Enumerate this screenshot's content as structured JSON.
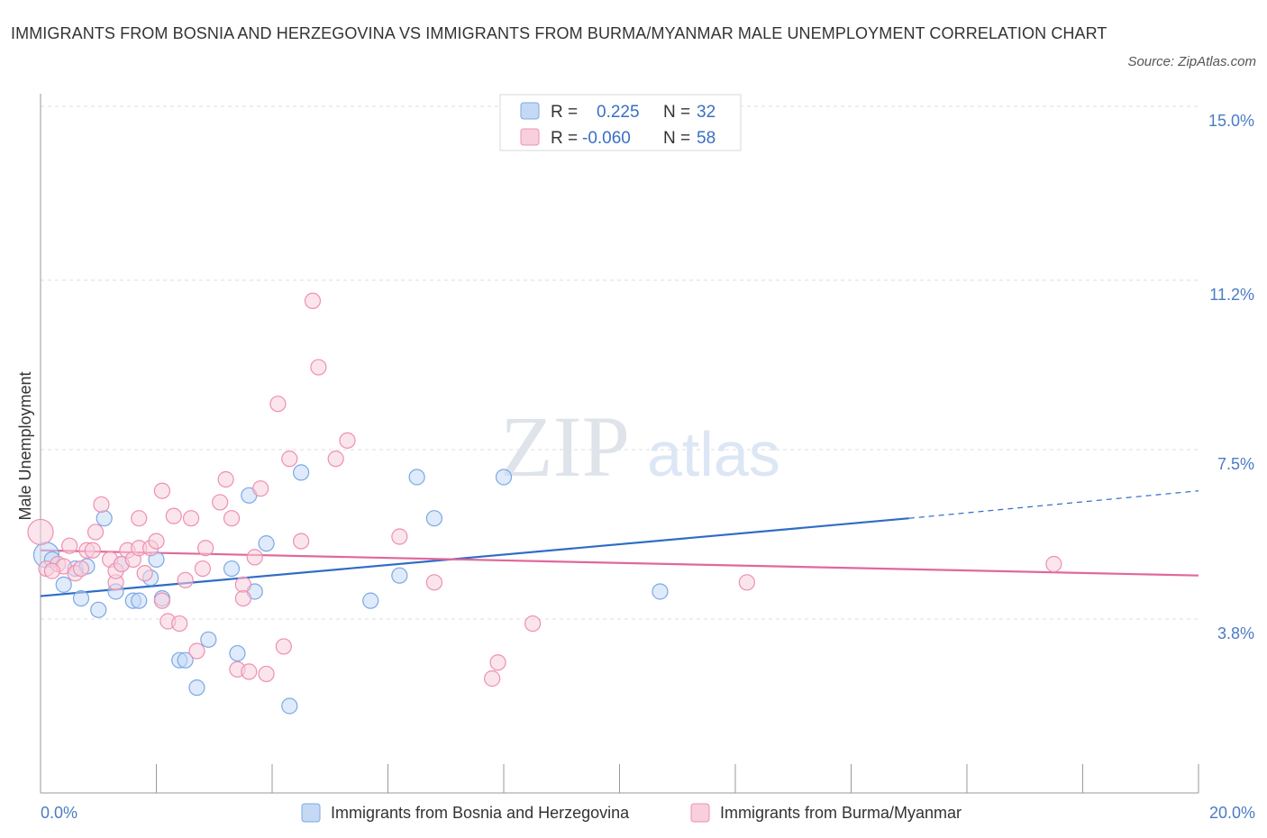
{
  "title": "IMMIGRANTS FROM BOSNIA AND HERZEGOVINA VS IMMIGRANTS FROM BURMA/MYANMAR MALE UNEMPLOYMENT CORRELATION CHART",
  "source": "Source: ZipAtlas.com",
  "watermark": {
    "part1": "ZIP",
    "part2": "atlas"
  },
  "colors": {
    "blue": "#7aa9e6",
    "blue_fill": "#c5d9f5",
    "blue_line": "#2f6cc6",
    "pink": "#ef8fb0",
    "pink_fill": "#f8cfdc",
    "pink_line": "#e0689a"
  },
  "legend": {
    "rows": [
      {
        "r_label": "R =",
        "r_value": "0.225",
        "n_label": "N =",
        "n_value": "32"
      },
      {
        "r_label": "R =",
        "r_value": "-0.060",
        "n_label": "N =",
        "n_value": "58"
      }
    ]
  },
  "chart_data": {
    "type": "scatter",
    "ylabel": "Male Unemployment",
    "xlim": [
      0,
      20
    ],
    "ylim": [
      0,
      15
    ],
    "x_tick_labels": [
      "0.0%",
      "20.0%"
    ],
    "y_ticks": [
      3.8,
      7.5,
      11.2,
      15.0
    ],
    "y_tick_labels": [
      "3.8%",
      "7.5%",
      "11.2%",
      "15.0%"
    ],
    "grid": "horizontal dashed",
    "series": [
      {
        "name": "Immigrants from Bosnia and Herzegovina",
        "color": "#7aa9e6",
        "trend": {
          "x0": 0,
          "y0": 4.3,
          "x1": 15.0,
          "y1": 6.0,
          "dash_to_x": 20,
          "dash_to_y": 6.6
        },
        "points": [
          [
            0.1,
            5.2
          ],
          [
            0.2,
            5.1
          ],
          [
            0.4,
            4.55
          ],
          [
            0.6,
            4.9
          ],
          [
            0.7,
            4.25
          ],
          [
            0.8,
            4.95
          ],
          [
            1.0,
            4.0
          ],
          [
            1.1,
            6.0
          ],
          [
            1.3,
            4.4
          ],
          [
            1.4,
            5.0
          ],
          [
            1.6,
            4.2
          ],
          [
            1.7,
            4.2
          ],
          [
            1.9,
            4.7
          ],
          [
            2.0,
            5.1
          ],
          [
            2.1,
            4.25
          ],
          [
            2.4,
            2.9
          ],
          [
            2.5,
            2.9
          ],
          [
            2.7,
            2.3
          ],
          [
            2.9,
            3.35
          ],
          [
            3.3,
            4.9
          ],
          [
            3.4,
            3.05
          ],
          [
            3.6,
            6.5
          ],
          [
            3.7,
            4.4
          ],
          [
            3.9,
            5.45
          ],
          [
            4.3,
            1.9
          ],
          [
            4.5,
            7.0
          ],
          [
            5.7,
            4.2
          ],
          [
            6.2,
            4.75
          ],
          [
            6.5,
            6.9
          ],
          [
            6.8,
            6.0
          ],
          [
            8.0,
            6.9
          ],
          [
            10.7,
            4.4
          ]
        ]
      },
      {
        "name": "Immigrants from Burma/Myanmar",
        "color": "#ef8fb0",
        "trend": {
          "x0": 0,
          "y0": 5.3,
          "x1": 20,
          "y1": 4.75
        },
        "points": [
          [
            0.0,
            5.7
          ],
          [
            0.1,
            4.9
          ],
          [
            0.3,
            5.0
          ],
          [
            0.4,
            4.95
          ],
          [
            0.5,
            5.4
          ],
          [
            0.6,
            4.8
          ],
          [
            0.7,
            4.9
          ],
          [
            0.8,
            5.3
          ],
          [
            0.9,
            5.3
          ],
          [
            0.95,
            5.7
          ],
          [
            1.05,
            6.3
          ],
          [
            1.2,
            5.1
          ],
          [
            1.3,
            4.6
          ],
          [
            1.3,
            4.85
          ],
          [
            1.4,
            5.0
          ],
          [
            1.5,
            5.3
          ],
          [
            1.6,
            5.1
          ],
          [
            1.7,
            5.35
          ],
          [
            1.7,
            6.0
          ],
          [
            1.8,
            4.8
          ],
          [
            1.9,
            5.35
          ],
          [
            2.0,
            5.5
          ],
          [
            2.1,
            4.2
          ],
          [
            2.1,
            6.6
          ],
          [
            2.2,
            3.75
          ],
          [
            2.3,
            6.05
          ],
          [
            2.4,
            3.7
          ],
          [
            2.5,
            4.65
          ],
          [
            2.6,
            6.0
          ],
          [
            2.7,
            3.1
          ],
          [
            2.8,
            4.9
          ],
          [
            2.85,
            5.35
          ],
          [
            3.1,
            6.35
          ],
          [
            3.2,
            6.85
          ],
          [
            3.3,
            6.0
          ],
          [
            3.4,
            2.7
          ],
          [
            3.5,
            4.55
          ],
          [
            3.5,
            4.25
          ],
          [
            3.6,
            2.65
          ],
          [
            3.7,
            5.15
          ],
          [
            3.8,
            6.65
          ],
          [
            3.9,
            2.6
          ],
          [
            4.1,
            8.5
          ],
          [
            4.2,
            3.2
          ],
          [
            4.3,
            7.3
          ],
          [
            4.5,
            5.5
          ],
          [
            4.7,
            10.75
          ],
          [
            4.8,
            9.3
          ],
          [
            5.1,
            7.3
          ],
          [
            5.3,
            7.7
          ],
          [
            6.2,
            5.6
          ],
          [
            6.8,
            4.6
          ],
          [
            7.8,
            2.5
          ],
          [
            7.9,
            2.85
          ],
          [
            8.5,
            3.7
          ],
          [
            12.2,
            4.6
          ],
          [
            17.5,
            5.0
          ],
          [
            0.2,
            4.85
          ]
        ]
      }
    ]
  }
}
